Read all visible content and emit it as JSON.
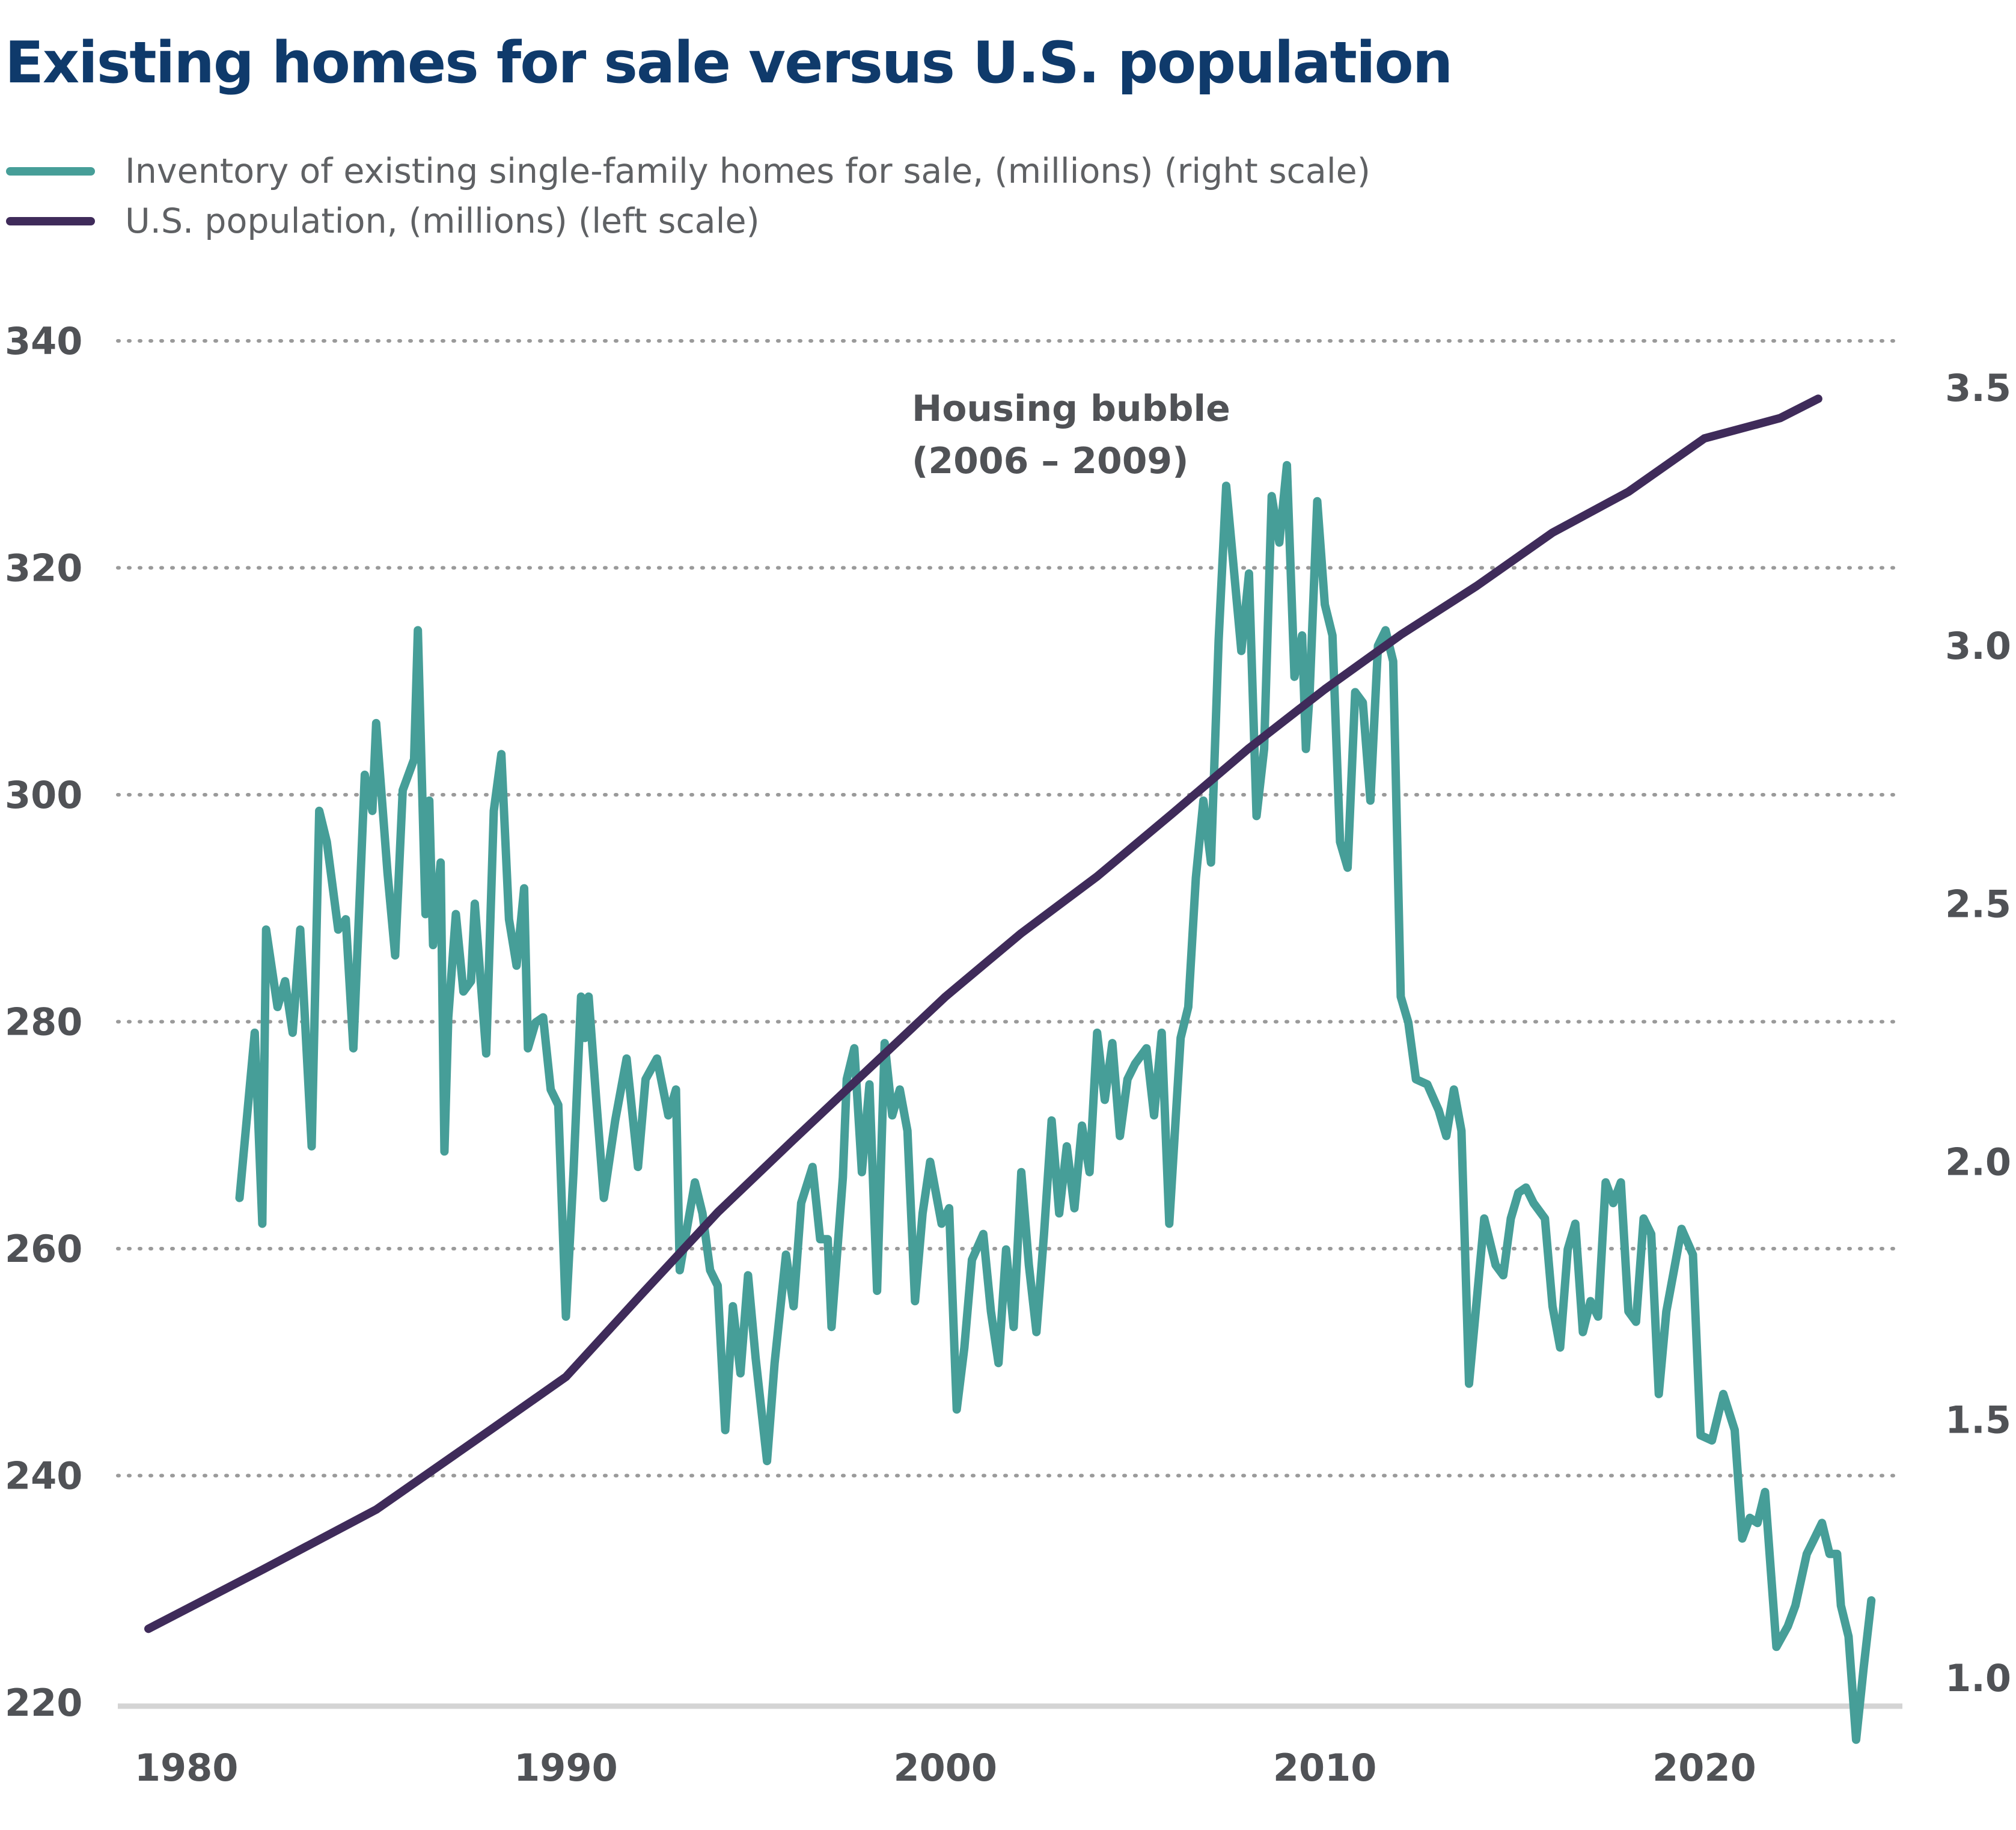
{
  "chart_data": {
    "type": "line",
    "title": "Existing homes for sale versus U.S. population",
    "series": [
      {
        "name": "Inventory of existing single-family homes for sale, (millions) (right scale)",
        "axis": "right",
        "color": "#469e98",
        "points": [
          [
            1981.4,
            1.93
          ],
          [
            1981.8,
            2.25
          ],
          [
            1982.0,
            1.88
          ],
          [
            1982.1,
            2.45
          ],
          [
            1982.4,
            2.3
          ],
          [
            1982.6,
            2.35
          ],
          [
            1982.8,
            2.25
          ],
          [
            1983.0,
            2.45
          ],
          [
            1983.3,
            2.03
          ],
          [
            1983.5,
            2.68
          ],
          [
            1983.7,
            2.62
          ],
          [
            1984.0,
            2.45
          ],
          [
            1984.2,
            2.47
          ],
          [
            1984.4,
            2.22
          ],
          [
            1984.7,
            2.75
          ],
          [
            1984.9,
            2.68
          ],
          [
            1985.0,
            2.85
          ],
          [
            1985.3,
            2.56
          ],
          [
            1985.5,
            2.4
          ],
          [
            1985.7,
            2.72
          ],
          [
            1986.0,
            2.78
          ],
          [
            1986.1,
            3.03
          ],
          [
            1986.3,
            2.48
          ],
          [
            1986.4,
            2.7
          ],
          [
            1986.5,
            2.42
          ],
          [
            1986.7,
            2.58
          ],
          [
            1986.8,
            2.02
          ],
          [
            1986.9,
            2.28
          ],
          [
            1987.1,
            2.48
          ],
          [
            1987.3,
            2.33
          ],
          [
            1987.5,
            2.35
          ],
          [
            1987.6,
            2.5
          ],
          [
            1987.9,
            2.21
          ],
          [
            1988.1,
            2.68
          ],
          [
            1988.3,
            2.79
          ],
          [
            1988.5,
            2.47
          ],
          [
            1988.7,
            2.38
          ],
          [
            1988.9,
            2.53
          ],
          [
            1989.0,
            2.22
          ],
          [
            1989.2,
            2.27
          ],
          [
            1989.4,
            2.28
          ],
          [
            1989.6,
            2.14
          ],
          [
            1989.8,
            2.11
          ],
          [
            1990.0,
            1.7
          ],
          [
            1990.2,
            1.98
          ],
          [
            1990.4,
            2.32
          ],
          [
            1990.5,
            2.24
          ],
          [
            1990.6,
            2.32
          ],
          [
            1990.8,
            2.12
          ],
          [
            1991.0,
            1.93
          ],
          [
            1991.3,
            2.08
          ],
          [
            1991.6,
            2.2
          ],
          [
            1991.9,
            1.99
          ],
          [
            1992.1,
            2.16
          ],
          [
            1992.4,
            2.2
          ],
          [
            1992.7,
            2.09
          ],
          [
            1992.9,
            2.14
          ],
          [
            1993.0,
            1.79
          ],
          [
            1993.4,
            1.96
          ],
          [
            1993.6,
            1.9
          ],
          [
            1993.8,
            1.79
          ],
          [
            1994.0,
            1.76
          ],
          [
            1994.2,
            1.48
          ],
          [
            1994.4,
            1.72
          ],
          [
            1994.6,
            1.59
          ],
          [
            1994.8,
            1.78
          ],
          [
            1995.0,
            1.62
          ],
          [
            1995.3,
            1.42
          ],
          [
            1995.5,
            1.61
          ],
          [
            1995.8,
            1.82
          ],
          [
            1996.0,
            1.72
          ],
          [
            1996.2,
            1.92
          ],
          [
            1996.5,
            1.99
          ],
          [
            1996.7,
            1.85
          ],
          [
            1996.9,
            1.85
          ],
          [
            1997.0,
            1.68
          ],
          [
            1997.3,
            1.97
          ],
          [
            1997.4,
            2.16
          ],
          [
            1997.6,
            2.22
          ],
          [
            1997.8,
            1.98
          ],
          [
            1998.0,
            2.15
          ],
          [
            1998.2,
            1.75
          ],
          [
            1998.4,
            2.23
          ],
          [
            1998.6,
            2.09
          ],
          [
            1998.8,
            2.14
          ],
          [
            1999.0,
            2.06
          ],
          [
            1999.2,
            1.73
          ],
          [
            1999.4,
            1.9
          ],
          [
            1999.6,
            2.0
          ],
          [
            1999.9,
            1.88
          ],
          [
            2000.1,
            1.91
          ],
          [
            2000.3,
            1.52
          ],
          [
            2000.5,
            1.64
          ],
          [
            2000.7,
            1.81
          ],
          [
            2001.0,
            1.86
          ],
          [
            2001.2,
            1.71
          ],
          [
            2001.4,
            1.61
          ],
          [
            2001.6,
            1.83
          ],
          [
            2001.8,
            1.68
          ],
          [
            2002.0,
            1.98
          ],
          [
            2002.2,
            1.8
          ],
          [
            2002.4,
            1.67
          ],
          [
            2002.6,
            1.86
          ],
          [
            2002.8,
            2.08
          ],
          [
            2003.0,
            1.9
          ],
          [
            2003.2,
            2.03
          ],
          [
            2003.4,
            1.91
          ],
          [
            2003.6,
            2.07
          ],
          [
            2003.8,
            1.98
          ],
          [
            2004.0,
            2.25
          ],
          [
            2004.2,
            2.12
          ],
          [
            2004.4,
            2.23
          ],
          [
            2004.6,
            2.05
          ],
          [
            2004.8,
            2.16
          ],
          [
            2005.0,
            2.19
          ],
          [
            2005.3,
            2.22
          ],
          [
            2005.5,
            2.09
          ],
          [
            2005.7,
            2.25
          ],
          [
            2005.9,
            1.88
          ],
          [
            2006.2,
            2.24
          ],
          [
            2006.4,
            2.3
          ],
          [
            2006.6,
            2.55
          ],
          [
            2006.8,
            2.7
          ],
          [
            2007.0,
            2.58
          ],
          [
            2007.2,
            3.01
          ],
          [
            2007.4,
            3.31
          ],
          [
            2007.6,
            3.15
          ],
          [
            2007.8,
            2.99
          ],
          [
            2008.0,
            3.14
          ],
          [
            2008.2,
            2.67
          ],
          [
            2008.4,
            2.8
          ],
          [
            2008.6,
            3.29
          ],
          [
            2008.8,
            3.2
          ],
          [
            2009.0,
            3.35
          ],
          [
            2009.2,
            2.94
          ],
          [
            2009.4,
            3.02
          ],
          [
            2009.5,
            2.8
          ],
          [
            2009.6,
            2.91
          ],
          [
            2009.8,
            3.28
          ],
          [
            2010.0,
            3.08
          ],
          [
            2010.2,
            3.02
          ],
          [
            2010.4,
            2.62
          ],
          [
            2010.6,
            2.57
          ],
          [
            2010.8,
            2.91
          ],
          [
            2011.0,
            2.89
          ],
          [
            2011.2,
            2.7
          ],
          [
            2011.4,
            3.0
          ],
          [
            2011.6,
            3.03
          ],
          [
            2011.8,
            2.97
          ],
          [
            2012.0,
            2.32
          ],
          [
            2012.2,
            2.27
          ],
          [
            2012.4,
            2.16
          ],
          [
            2012.7,
            2.15
          ],
          [
            2013.0,
            2.1
          ],
          [
            2013.2,
            2.05
          ],
          [
            2013.4,
            2.14
          ],
          [
            2013.6,
            2.06
          ],
          [
            2013.8,
            1.57
          ],
          [
            2014.0,
            1.73
          ],
          [
            2014.2,
            1.89
          ],
          [
            2014.5,
            1.8
          ],
          [
            2014.7,
            1.78
          ],
          [
            2014.9,
            1.89
          ],
          [
            2015.1,
            1.94
          ],
          [
            2015.3,
            1.95
          ],
          [
            2015.5,
            1.92
          ],
          [
            2015.8,
            1.89
          ],
          [
            2016.0,
            1.72
          ],
          [
            2016.2,
            1.64
          ],
          [
            2016.4,
            1.83
          ],
          [
            2016.6,
            1.88
          ],
          [
            2016.8,
            1.67
          ],
          [
            2017.0,
            1.73
          ],
          [
            2017.2,
            1.7
          ],
          [
            2017.4,
            1.96
          ],
          [
            2017.6,
            1.92
          ],
          [
            2017.8,
            1.96
          ],
          [
            2018.0,
            1.71
          ],
          [
            2018.2,
            1.69
          ],
          [
            2018.4,
            1.89
          ],
          [
            2018.6,
            1.86
          ],
          [
            2018.8,
            1.55
          ],
          [
            2019.0,
            1.71
          ],
          [
            2019.2,
            1.79
          ],
          [
            2019.4,
            1.87
          ],
          [
            2019.7,
            1.82
          ],
          [
            2019.9,
            1.47
          ],
          [
            2020.2,
            1.46
          ],
          [
            2020.5,
            1.55
          ],
          [
            2020.8,
            1.48
          ],
          [
            2021.0,
            1.27
          ],
          [
            2021.2,
            1.31
          ],
          [
            2021.4,
            1.3
          ],
          [
            2021.6,
            1.36
          ],
          [
            2021.9,
            1.06
          ],
          [
            2022.2,
            1.1
          ],
          [
            2022.4,
            1.14
          ],
          [
            2022.7,
            1.24
          ],
          [
            2022.9,
            1.27
          ],
          [
            2023.1,
            1.3
          ],
          [
            2023.3,
            1.24
          ],
          [
            2023.5,
            1.24
          ],
          [
            2023.6,
            1.14
          ],
          [
            2023.8,
            1.08
          ],
          [
            2024.0,
            0.88
          ],
          [
            2024.2,
            1.02
          ],
          [
            2024.4,
            1.15
          ]
        ]
      },
      {
        "name": "U.S. population, (millions) (left scale)",
        "axis": "left",
        "color": "#3f2b5a",
        "points": [
          [
            1979,
            226.5
          ],
          [
            1982,
            231.7
          ],
          [
            1985,
            237.0
          ],
          [
            1988,
            244.0
          ],
          [
            1990,
            248.7
          ],
          [
            1992,
            256.0
          ],
          [
            1994,
            263.2
          ],
          [
            1996,
            269.6
          ],
          [
            1998,
            275.9
          ],
          [
            2000,
            282.2
          ],
          [
            2001,
            285.0
          ],
          [
            2002,
            287.8
          ],
          [
            2004,
            292.8
          ],
          [
            2006,
            298.4
          ],
          [
            2008,
            304.1
          ],
          [
            2010,
            309.3
          ],
          [
            2012,
            314.1
          ],
          [
            2014,
            318.4
          ],
          [
            2016,
            323.1
          ],
          [
            2018,
            326.7
          ],
          [
            2020,
            331.4
          ],
          [
            2022,
            333.2
          ],
          [
            2023,
            334.9
          ]
        ]
      }
    ],
    "xlim": [
      1979,
      2024
    ],
    "ylim_left": [
      220,
      340
    ],
    "ylim_right": [
      0.5,
      3.5
    ],
    "xticks": [
      "1980",
      "1990",
      "2000",
      "2010",
      "2020"
    ],
    "yticks_left": [
      "340",
      "320",
      "300",
      "280",
      "260",
      "240",
      "220"
    ],
    "yticks_right": [
      "3.5",
      "3.0",
      "2.5",
      "2.0",
      "1.5",
      "1.0"
    ],
    "grid": true,
    "legend_position": "top-left",
    "annotation": {
      "line1": "Housing bubble",
      "line2": "(2006 – 2009)"
    }
  }
}
